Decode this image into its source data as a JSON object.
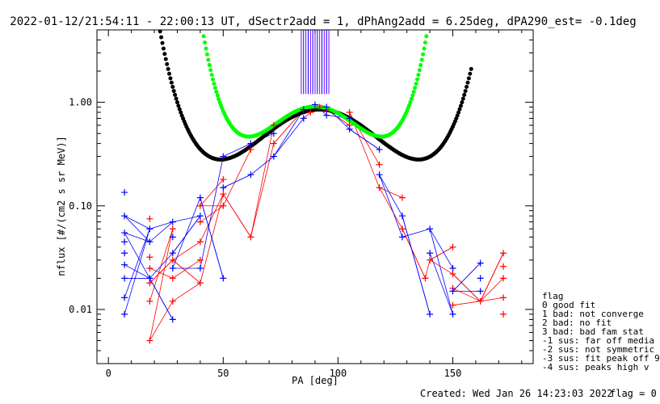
{
  "title": "2022-01-12/21:54:11 - 22:00:13 UT, dSectr2add = 1, dPhAng2add = 6.25deg, dPA290_est=  -0.1deg",
  "footer": {
    "created": "Created: Wed Jan 26 14:23:03 2022",
    "flag": "flag = 0"
  },
  "legend": {
    "title": "flag",
    "items": [
      " 0 good fit",
      " 1 bad: not converge",
      " 2 bad: no fit",
      " 3 bad: bad fam stat",
      "-1 sus: far off media",
      "-2 sus: not symmetric",
      "-3 sus: fit peak off 9",
      "-4 sus: peaks high v"
    ]
  },
  "chart_data": {
    "type": "scatter",
    "title": "2022-01-12/21:54:11 - 22:00:13 UT, dSectr2add = 1, dPhAng2add = 6.25deg, dPA290_est=  -0.1deg",
    "xlabel": "PA [deg]",
    "ylabel": "nflux [#/(cm2 s sr MeV)]",
    "xlim": [
      -5,
      185
    ],
    "ylim": [
      0.003,
      5
    ],
    "yscale": "log",
    "xticks": [
      0,
      50,
      100,
      150
    ],
    "xtick_labels": [
      "0",
      "50",
      "100",
      "150"
    ],
    "yticks": [
      0.01,
      0.1,
      1.0
    ],
    "ytick_labels": [
      "0.01",
      "0.10",
      "1.00"
    ],
    "colors": {
      "red": "#ff0000",
      "blue": "#0000ff",
      "black": "#000000",
      "green": "#00ff00",
      "purple": "#8000ff"
    },
    "series": [
      {
        "color": "red",
        "marker": "+",
        "x": [
          18,
          18,
          18,
          18,
          18,
          18,
          28,
          28,
          28,
          28,
          40,
          40,
          40,
          40,
          40,
          50,
          50,
          50,
          62,
          62,
          72,
          72,
          85,
          85,
          88,
          92,
          95,
          105,
          105,
          118,
          118,
          128,
          128,
          138,
          140,
          150,
          150,
          150,
          150,
          162,
          172,
          172,
          172,
          172,
          172
        ],
        "y": [
          0.005,
          0.012,
          0.018,
          0.025,
          0.032,
          0.075,
          0.012,
          0.02,
          0.03,
          0.06,
          0.018,
          0.03,
          0.045,
          0.07,
          0.1,
          0.1,
          0.13,
          0.18,
          0.05,
          0.35,
          0.4,
          0.6,
          0.7,
          0.85,
          0.8,
          0.9,
          0.85,
          0.6,
          0.8,
          0.15,
          0.25,
          0.06,
          0.12,
          0.02,
          0.03,
          0.011,
          0.016,
          0.022,
          0.04,
          0.012,
          0.009,
          0.013,
          0.02,
          0.026,
          0.035
        ]
      },
      {
        "color": "blue",
        "marker": "+",
        "x": [
          7,
          7,
          7,
          7,
          7,
          7,
          7,
          7,
          7,
          18,
          18,
          18,
          28,
          28,
          28,
          28,
          28,
          40,
          40,
          40,
          50,
          50,
          50,
          62,
          62,
          72,
          72,
          85,
          85,
          90,
          95,
          95,
          105,
          105,
          118,
          118,
          128,
          128,
          140,
          140,
          140,
          150,
          150,
          150,
          162,
          162,
          162
        ],
        "y": [
          0.009,
          0.013,
          0.02,
          0.027,
          0.035,
          0.045,
          0.055,
          0.08,
          0.135,
          0.02,
          0.045,
          0.06,
          0.008,
          0.025,
          0.035,
          0.05,
          0.07,
          0.025,
          0.08,
          0.12,
          0.02,
          0.15,
          0.3,
          0.2,
          0.4,
          0.3,
          0.5,
          0.7,
          0.85,
          0.95,
          0.9,
          0.75,
          0.7,
          0.55,
          0.2,
          0.35,
          0.05,
          0.08,
          0.009,
          0.035,
          0.06,
          0.015,
          0.025,
          0.009,
          0.015,
          0.02,
          0.028
        ]
      },
      {
        "color": "black",
        "marker": "dot",
        "fit": "log-parabola + shoulder",
        "x_range": [
          22,
          158
        ]
      },
      {
        "color": "green",
        "marker": "dot",
        "fit": "log-parabola",
        "x_range": [
          20,
          144
        ]
      }
    ],
    "vertical_lines_x_range": [
      84,
      96
    ],
    "grid": false,
    "legend_position": "right"
  }
}
